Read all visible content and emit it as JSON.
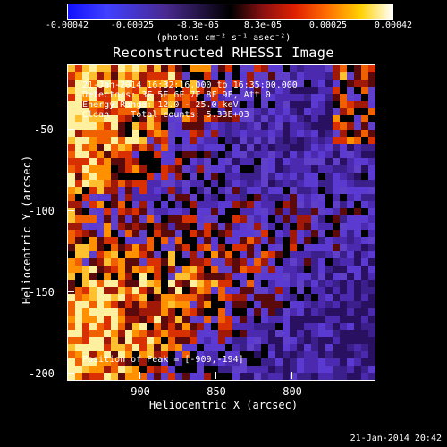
{
  "colorbar": {
    "ticks": [
      "-0.00042",
      "-0.00025",
      "-8.3e-05",
      "8.3e-05",
      "0.00025",
      "0.00042"
    ],
    "units": "(photons cm⁻² s⁻¹ asec⁻²)"
  },
  "chart_data": {
    "type": "heatmap",
    "title": "Reconstructed RHESSI Image",
    "xlabel": "Heliocentric X (arcsec)",
    "ylabel": "Heliocentric Y (arcsec)",
    "xlim": [
      -945,
      -765
    ],
    "ylim": [
      -205,
      -10
    ],
    "xticks": [
      "-900",
      "-850",
      "-800"
    ],
    "yticks": [
      "-50",
      "-100",
      "-150",
      "-200"
    ],
    "color_range": [
      -0.00042,
      0.00042
    ],
    "peak_position": [
      -909,
      -194
    ]
  },
  "annotations": {
    "line1": "21-Jan-2014 16:32:16.000 to 16:35:00.000",
    "line2": "Detectors: 3F 5F 6F 7F 8F 9F, Att 0",
    "line3": "Energy Range: 12.0 - 25.0 keV",
    "line4": "Clean    Total counts: 5.33E+03",
    "peak": "Position of Peak = [-909,-194]"
  },
  "timestamp": "21-Jan-2014 20:42"
}
